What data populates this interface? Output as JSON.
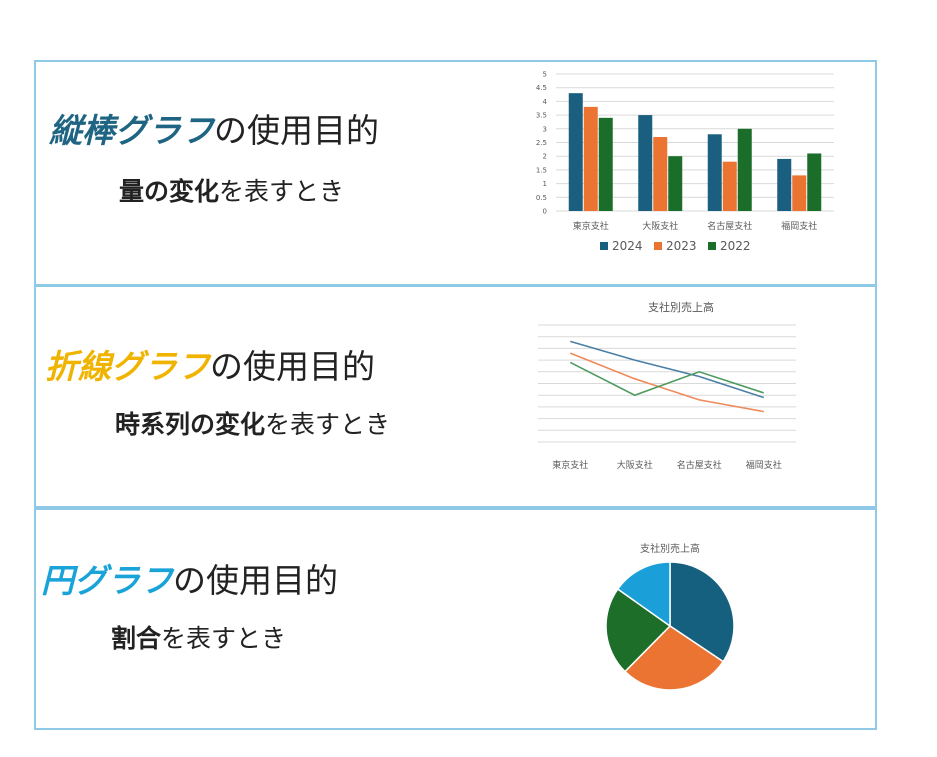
{
  "panels": [
    {
      "heading_highlight": "縦棒グラフ",
      "heading_rest": "の使用目的",
      "sub_bold": "量の変化",
      "sub_rest": "を表すとき"
    },
    {
      "heading_highlight": "折線グラフ",
      "heading_rest": "の使用目的",
      "sub_bold": "時系列の変化",
      "sub_rest": "を表すとき"
    },
    {
      "heading_highlight": "円グラフ",
      "heading_rest": "の使用目的",
      "sub_bold": "割合",
      "sub_rest": "を表すとき"
    }
  ],
  "colors": {
    "series_2024": "#1a5e80",
    "series_2023": "#ec7433",
    "series_2022": "#1b6e2a",
    "line_2024": "#4a7fa6",
    "line_2023": "#f08a5a",
    "line_2022": "#4f9b5f",
    "pie_a": "#16607f",
    "pie_b": "#ec7433",
    "pie_c": "#1d6e28",
    "pie_d": "#1a9fd8"
  },
  "chart_data": [
    {
      "type": "bar",
      "categories": [
        "東京支社",
        "大阪支社",
        "名古屋支社",
        "福岡支社"
      ],
      "series": [
        {
          "name": "2024",
          "values": [
            4.3,
            3.5,
            2.8,
            1.9
          ]
        },
        {
          "name": "2023",
          "values": [
            3.8,
            2.7,
            1.8,
            1.3
          ]
        },
        {
          "name": "2022",
          "values": [
            3.4,
            2.0,
            3.0,
            2.1
          ]
        }
      ],
      "ylim": [
        0,
        5
      ],
      "yticks": [
        "0",
        "0.5",
        "1",
        "1.5",
        "2",
        "2.5",
        "3",
        "3.5",
        "4",
        "4.5",
        "5"
      ],
      "grid": true,
      "legend": "bottom"
    },
    {
      "type": "line",
      "title": "支社別売上高",
      "categories": [
        "東京支社",
        "大阪支社",
        "名古屋支社",
        "福岡支社"
      ],
      "series": [
        {
          "values": [
            4.3,
            3.5,
            2.8,
            1.9
          ]
        },
        {
          "values": [
            3.8,
            2.7,
            1.8,
            1.3
          ]
        },
        {
          "values": [
            3.4,
            2.0,
            3.0,
            2.1
          ]
        }
      ],
      "ylim": [
        0,
        5
      ],
      "grid": true
    },
    {
      "type": "pie",
      "title": "支社別売上高",
      "values": [
        4.3,
        3.5,
        2.8,
        1.9
      ]
    }
  ]
}
